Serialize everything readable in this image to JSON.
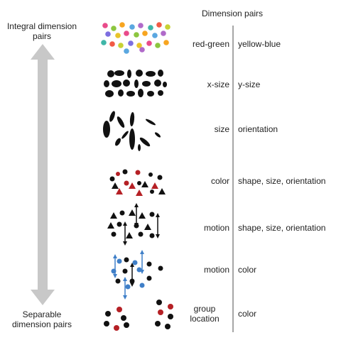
{
  "header": {
    "title": "Dimension pairs"
  },
  "scale": {
    "top_label": "Integral dimension pairs",
    "bottom_label": "Separable dimension pairs"
  },
  "rows": [
    {
      "left": "red-green",
      "right": "yellow-blue"
    },
    {
      "left": "x-size",
      "right": "y-size"
    },
    {
      "left": "size",
      "right": "orientation"
    },
    {
      "left": "color",
      "right": "shape, size, orientation"
    },
    {
      "left": "motion",
      "right": "shape, size, orientation"
    },
    {
      "left": "motion",
      "right": "color"
    },
    {
      "left": "group location",
      "right": "color"
    }
  ],
  "colors": {
    "arrow": "#c8c8c8",
    "divider": "#888888",
    "black": "#111111",
    "red": "#b52025",
    "blue": "#3f7fc8"
  },
  "glyph_sets": [
    "colored-dots",
    "ellipses-xy",
    "ellipses-size-orientation",
    "color-shape-mix",
    "moving-shapes",
    "moving-colored-dots",
    "grouped-dots"
  ]
}
